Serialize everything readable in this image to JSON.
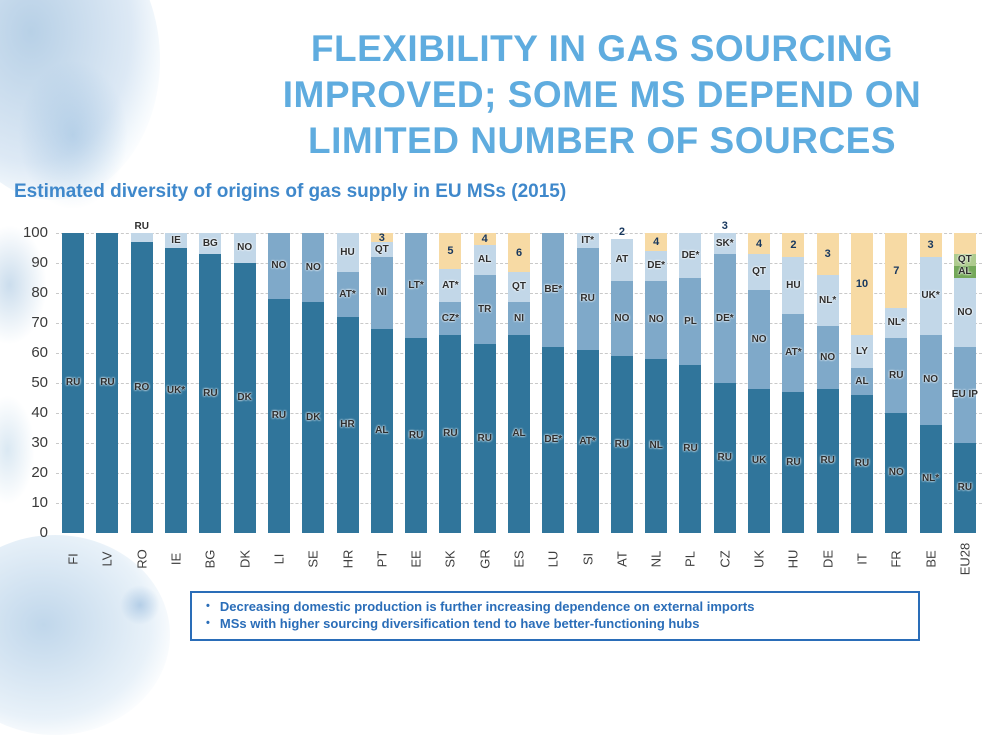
{
  "page": {
    "title_lines": [
      "FLEXIBILITY IN GAS SOURCING",
      "IMPROVED; SOME MS DEPEND ON",
      "LIMITED NUMBER OF SOURCES"
    ],
    "subtitle": "Estimated diversity of origins of gas supply in EU MSs (2015)",
    "note_bullet": "•",
    "notes": [
      "Decreasing domestic production is further increasing dependence on external imports",
      "MSs with higher sourcing diversification tend to have better-functioning hubs"
    ]
  },
  "colors": {
    "title": "#5facdf",
    "subtitle": "#3f88cb",
    "note_text": "#2a6db8",
    "dark": "#30759b",
    "mid": "#7fa9c9",
    "light": "#c2d7e8",
    "orange": "#f7daa4",
    "green": "#74a85a",
    "lightgreen": "#aecb8e"
  },
  "chart_data": {
    "type": "bar",
    "stacked": true,
    "title": "Estimated diversity of origins of gas supply in EU MSs (2015)",
    "xlabel": "",
    "ylabel": "",
    "ylim": [
      0,
      100
    ],
    "yticks": [
      0,
      10,
      20,
      30,
      40,
      50,
      60,
      70,
      80,
      90,
      100
    ],
    "grid": "dashed-horizontal",
    "legend": "none",
    "categories": [
      "FI",
      "LV",
      "RO",
      "IE",
      "BG",
      "DK",
      "LI",
      "SE",
      "HR",
      "PT",
      "EE",
      "SK",
      "GR",
      "ES",
      "LU",
      "SI",
      "AT",
      "NL",
      "PL",
      "CZ",
      "UK",
      "HU",
      "DE",
      "IT",
      "FR",
      "BE",
      "EU28"
    ],
    "bars": [
      {
        "country": "FI",
        "segments": [
          {
            "source": "RU",
            "value": 100,
            "color": "dark"
          }
        ]
      },
      {
        "country": "LV",
        "segments": [
          {
            "source": "RU",
            "value": 100,
            "color": "dark"
          }
        ]
      },
      {
        "country": "RO",
        "annotation": "RU",
        "segments": [
          {
            "source": "RO",
            "value": 97,
            "color": "dark"
          },
          {
            "source": "",
            "value": 3,
            "color": "light"
          }
        ]
      },
      {
        "country": "IE",
        "segments": [
          {
            "source": "UK*",
            "value": 95,
            "color": "dark"
          },
          {
            "source": "IE",
            "value": 5,
            "color": "light"
          }
        ]
      },
      {
        "country": "BG",
        "segments": [
          {
            "source": "RU",
            "value": 93,
            "color": "dark"
          },
          {
            "source": "BG",
            "value": 7,
            "color": "light"
          }
        ]
      },
      {
        "country": "DK",
        "segments": [
          {
            "source": "DK",
            "value": 90,
            "color": "dark"
          },
          {
            "source": "NO",
            "value": 10,
            "color": "light"
          }
        ]
      },
      {
        "country": "LI",
        "segments": [
          {
            "source": "RU",
            "value": 78,
            "color": "dark"
          },
          {
            "source": "NO",
            "value": 22,
            "color": "mid"
          }
        ]
      },
      {
        "country": "SE",
        "segments": [
          {
            "source": "DK",
            "value": 77,
            "color": "dark"
          },
          {
            "source": "NO",
            "value": 23,
            "color": "mid"
          }
        ]
      },
      {
        "country": "HR",
        "segments": [
          {
            "source": "HR",
            "value": 72,
            "color": "dark"
          },
          {
            "source": "AT*",
            "value": 15,
            "color": "mid"
          },
          {
            "source": "HU",
            "value": 13,
            "color": "light"
          }
        ]
      },
      {
        "country": "PT",
        "segments": [
          {
            "source": "AL",
            "value": 68,
            "color": "dark"
          },
          {
            "source": "NI",
            "value": 24,
            "color": "mid"
          },
          {
            "source": "QT",
            "value": 5,
            "color": "light"
          },
          {
            "source": "3",
            "value": 3,
            "color": "orange"
          }
        ]
      },
      {
        "country": "EE",
        "segments": [
          {
            "source": "RU",
            "value": 65,
            "color": "dark"
          },
          {
            "source": "LT*",
            "value": 35,
            "color": "mid"
          }
        ]
      },
      {
        "country": "SK",
        "segments": [
          {
            "source": "RU",
            "value": 66,
            "color": "dark"
          },
          {
            "source": "CZ*",
            "value": 11,
            "color": "mid"
          },
          {
            "source": "AT*",
            "value": 11,
            "color": "light"
          },
          {
            "source": "5",
            "value": 12,
            "color": "orange"
          }
        ]
      },
      {
        "country": "GR",
        "segments": [
          {
            "source": "RU",
            "value": 63,
            "color": "dark"
          },
          {
            "source": "TR",
            "value": 23,
            "color": "mid"
          },
          {
            "source": "AL",
            "value": 10,
            "color": "light"
          },
          {
            "source": "4",
            "value": 4,
            "color": "orange"
          }
        ]
      },
      {
        "country": "ES",
        "segments": [
          {
            "source": "AL",
            "value": 66,
            "color": "dark"
          },
          {
            "source": "NI",
            "value": 11,
            "color": "mid"
          },
          {
            "source": "QT",
            "value": 10,
            "color": "light"
          },
          {
            "source": "6",
            "value": 13,
            "color": "orange"
          }
        ]
      },
      {
        "country": "LU",
        "segments": [
          {
            "source": "DE*",
            "value": 62,
            "color": "dark"
          },
          {
            "source": "BE*",
            "value": 38,
            "color": "mid"
          }
        ]
      },
      {
        "country": "SI",
        "segments": [
          {
            "source": "AT*",
            "value": 61,
            "color": "dark"
          },
          {
            "source": "RU",
            "value": 34,
            "color": "mid"
          },
          {
            "source": "IT*",
            "value": 5,
            "color": "light"
          }
        ]
      },
      {
        "country": "AT",
        "annotation": "2",
        "segments": [
          {
            "source": "RU",
            "value": 59,
            "color": "dark"
          },
          {
            "source": "NO",
            "value": 25,
            "color": "mid"
          },
          {
            "source": "AT",
            "value": 14,
            "color": "light"
          }
        ]
      },
      {
        "country": "NL",
        "segments": [
          {
            "source": "NL",
            "value": 58,
            "color": "dark"
          },
          {
            "source": "NO",
            "value": 26,
            "color": "mid"
          },
          {
            "source": "DE*",
            "value": 10,
            "color": "light"
          },
          {
            "source": "4",
            "value": 6,
            "color": "orange"
          }
        ]
      },
      {
        "country": "PL",
        "segments": [
          {
            "source": "RU",
            "value": 56,
            "color": "dark"
          },
          {
            "source": "PL",
            "value": 29,
            "color": "mid"
          },
          {
            "source": "DE*",
            "value": 15,
            "color": "light"
          }
        ]
      },
      {
        "country": "CZ",
        "annotation": "3",
        "segments": [
          {
            "source": "RU",
            "value": 50,
            "color": "dark"
          },
          {
            "source": "DE*",
            "value": 43,
            "color": "mid"
          },
          {
            "source": "SK*",
            "value": 7,
            "color": "light"
          }
        ]
      },
      {
        "country": "UK",
        "segments": [
          {
            "source": "UK",
            "value": 48,
            "color": "dark"
          },
          {
            "source": "NO",
            "value": 33,
            "color": "mid"
          },
          {
            "source": "QT",
            "value": 12,
            "color": "light"
          },
          {
            "source": "4",
            "value": 7,
            "color": "orange"
          }
        ]
      },
      {
        "country": "HU",
        "segments": [
          {
            "source": "RU",
            "value": 47,
            "color": "dark"
          },
          {
            "source": "AT*",
            "value": 26,
            "color": "mid"
          },
          {
            "source": "HU",
            "value": 19,
            "color": "light"
          },
          {
            "source": "2",
            "value": 8,
            "color": "orange"
          }
        ]
      },
      {
        "country": "DE",
        "segments": [
          {
            "source": "RU",
            "value": 48,
            "color": "dark"
          },
          {
            "source": "NO",
            "value": 21,
            "color": "mid"
          },
          {
            "source": "NL*",
            "value": 17,
            "color": "light"
          },
          {
            "source": "3",
            "value": 14,
            "color": "orange"
          }
        ]
      },
      {
        "country": "IT",
        "segments": [
          {
            "source": "RU",
            "value": 46,
            "color": "dark"
          },
          {
            "source": "AL",
            "value": 9,
            "color": "mid"
          },
          {
            "source": "LY",
            "value": 11,
            "color": "light"
          },
          {
            "source": "10",
            "value": 34,
            "color": "orange"
          }
        ]
      },
      {
        "country": "FR",
        "segments": [
          {
            "source": "NO",
            "value": 40,
            "color": "dark"
          },
          {
            "source": "RU",
            "value": 25,
            "color": "mid"
          },
          {
            "source": "NL*",
            "value": 10,
            "color": "light"
          },
          {
            "source": "7",
            "value": 25,
            "color": "orange"
          }
        ]
      },
      {
        "country": "BE",
        "segments": [
          {
            "source": "NL*",
            "value": 36,
            "color": "dark"
          },
          {
            "source": "NO",
            "value": 30,
            "color": "mid"
          },
          {
            "source": "UK*",
            "value": 26,
            "color": "light"
          },
          {
            "source": "3",
            "value": 8,
            "color": "orange"
          }
        ]
      },
      {
        "country": "EU28",
        "segments": [
          {
            "source": "RU",
            "value": 30,
            "color": "dark"
          },
          {
            "source": "EU IP",
            "value": 32,
            "color": "mid"
          },
          {
            "source": "NO",
            "value": 23,
            "color": "light"
          },
          {
            "source": "AL",
            "value": 4,
            "color": "green"
          },
          {
            "source": "QT",
            "value": 4,
            "color": "lightgreen"
          },
          {
            "source": "",
            "value": 7,
            "color": "orange"
          }
        ]
      }
    ]
  }
}
